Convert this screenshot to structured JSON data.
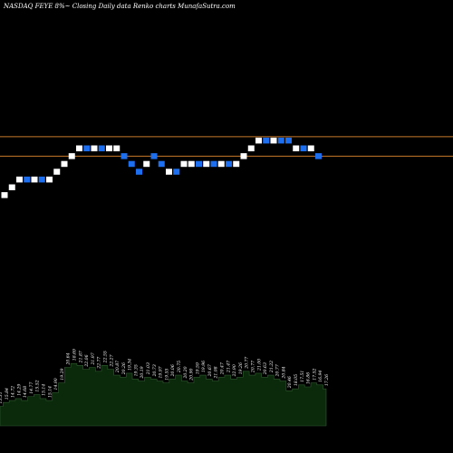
{
  "header": {
    "title": "NASDAQ FEYE 8%~  Closing Daily data  Renko  charts MunafaSutra.com"
  },
  "colors": {
    "background": "#000000",
    "brick_up": "#ffffff",
    "brick_down": "#1e6ff0",
    "reference_line": "#c8782a",
    "volume_fill": "#0b2a0b",
    "volume_outline": "#2f5a2f",
    "label_text": "#ffffff"
  },
  "chart_data": [
    {
      "type": "renko",
      "title": "NASDAQ FEYE 8%~  Closing Daily data  Renko  charts MunafaSutra.com",
      "brick_levels": [
        -6,
        -5,
        -4,
        -4,
        -4,
        -4,
        -4,
        -3,
        -2,
        -1,
        0,
        0,
        0,
        0,
        0,
        0,
        -1,
        -2,
        -3,
        -2,
        -1,
        -2,
        -3,
        -3,
        -2,
        -2,
        -2,
        -2,
        -2,
        -2,
        -2,
        -2,
        -1,
        0,
        1,
        1,
        1,
        1,
        1,
        0,
        0,
        0,
        -1
      ],
      "brick_colors": [
        "up",
        "up",
        "up",
        "down",
        "up",
        "down",
        "up",
        "up",
        "up",
        "up",
        "up",
        "down",
        "up",
        "down",
        "up",
        "up",
        "down",
        "down",
        "down",
        "up",
        "down",
        "down",
        "up",
        "down",
        "up",
        "up",
        "down",
        "up",
        "down",
        "up",
        "down",
        "up",
        "up",
        "up",
        "up",
        "down",
        "up",
        "down",
        "down",
        "up",
        "down",
        "up",
        "down"
      ],
      "reference_lines": [
        1.5,
        -1.0
      ],
      "grid": false
    },
    {
      "type": "area",
      "name": "volume",
      "values": [
        10,
        12,
        13,
        14,
        13,
        15,
        16,
        14,
        13,
        17,
        22,
        30,
        32,
        31,
        29,
        30,
        28,
        31,
        29,
        26,
        25,
        27,
        24,
        23,
        25,
        24,
        23,
        22,
        24,
        26,
        23,
        22,
        25,
        26,
        24,
        23,
        25,
        26,
        24,
        25,
        28,
        26,
        27,
        25,
        26,
        24,
        23,
        18,
        19,
        21,
        20,
        22,
        21,
        19
      ],
      "labels": [
        "15.31",
        "15.84",
        "14.72",
        "14.29",
        "14.68",
        "14.77",
        "15.52",
        "15.14",
        "15.14",
        "14.90",
        "19.29",
        "20.64",
        "18.69",
        "21.87",
        "22.06",
        "21.97",
        "22.77",
        "22.55",
        "22.27",
        "20.87",
        "20.26",
        "19.34",
        "19.35",
        "20.19",
        "21.03",
        "20.73",
        "19.97",
        "19.55",
        "20.06",
        "20.75",
        "20.20",
        "20.90",
        "19.59",
        "19.96",
        "20.67",
        "21.08",
        "20.47",
        "21.47",
        "22.90",
        "19.26",
        "20.77",
        "20.77",
        "21.00",
        "20.63",
        "21.22",
        "20.77",
        "20.84",
        "20.46",
        "18.05",
        "17.51",
        "16.86",
        "17.52",
        "16.94",
        "17.26"
      ],
      "grid": false
    }
  ]
}
